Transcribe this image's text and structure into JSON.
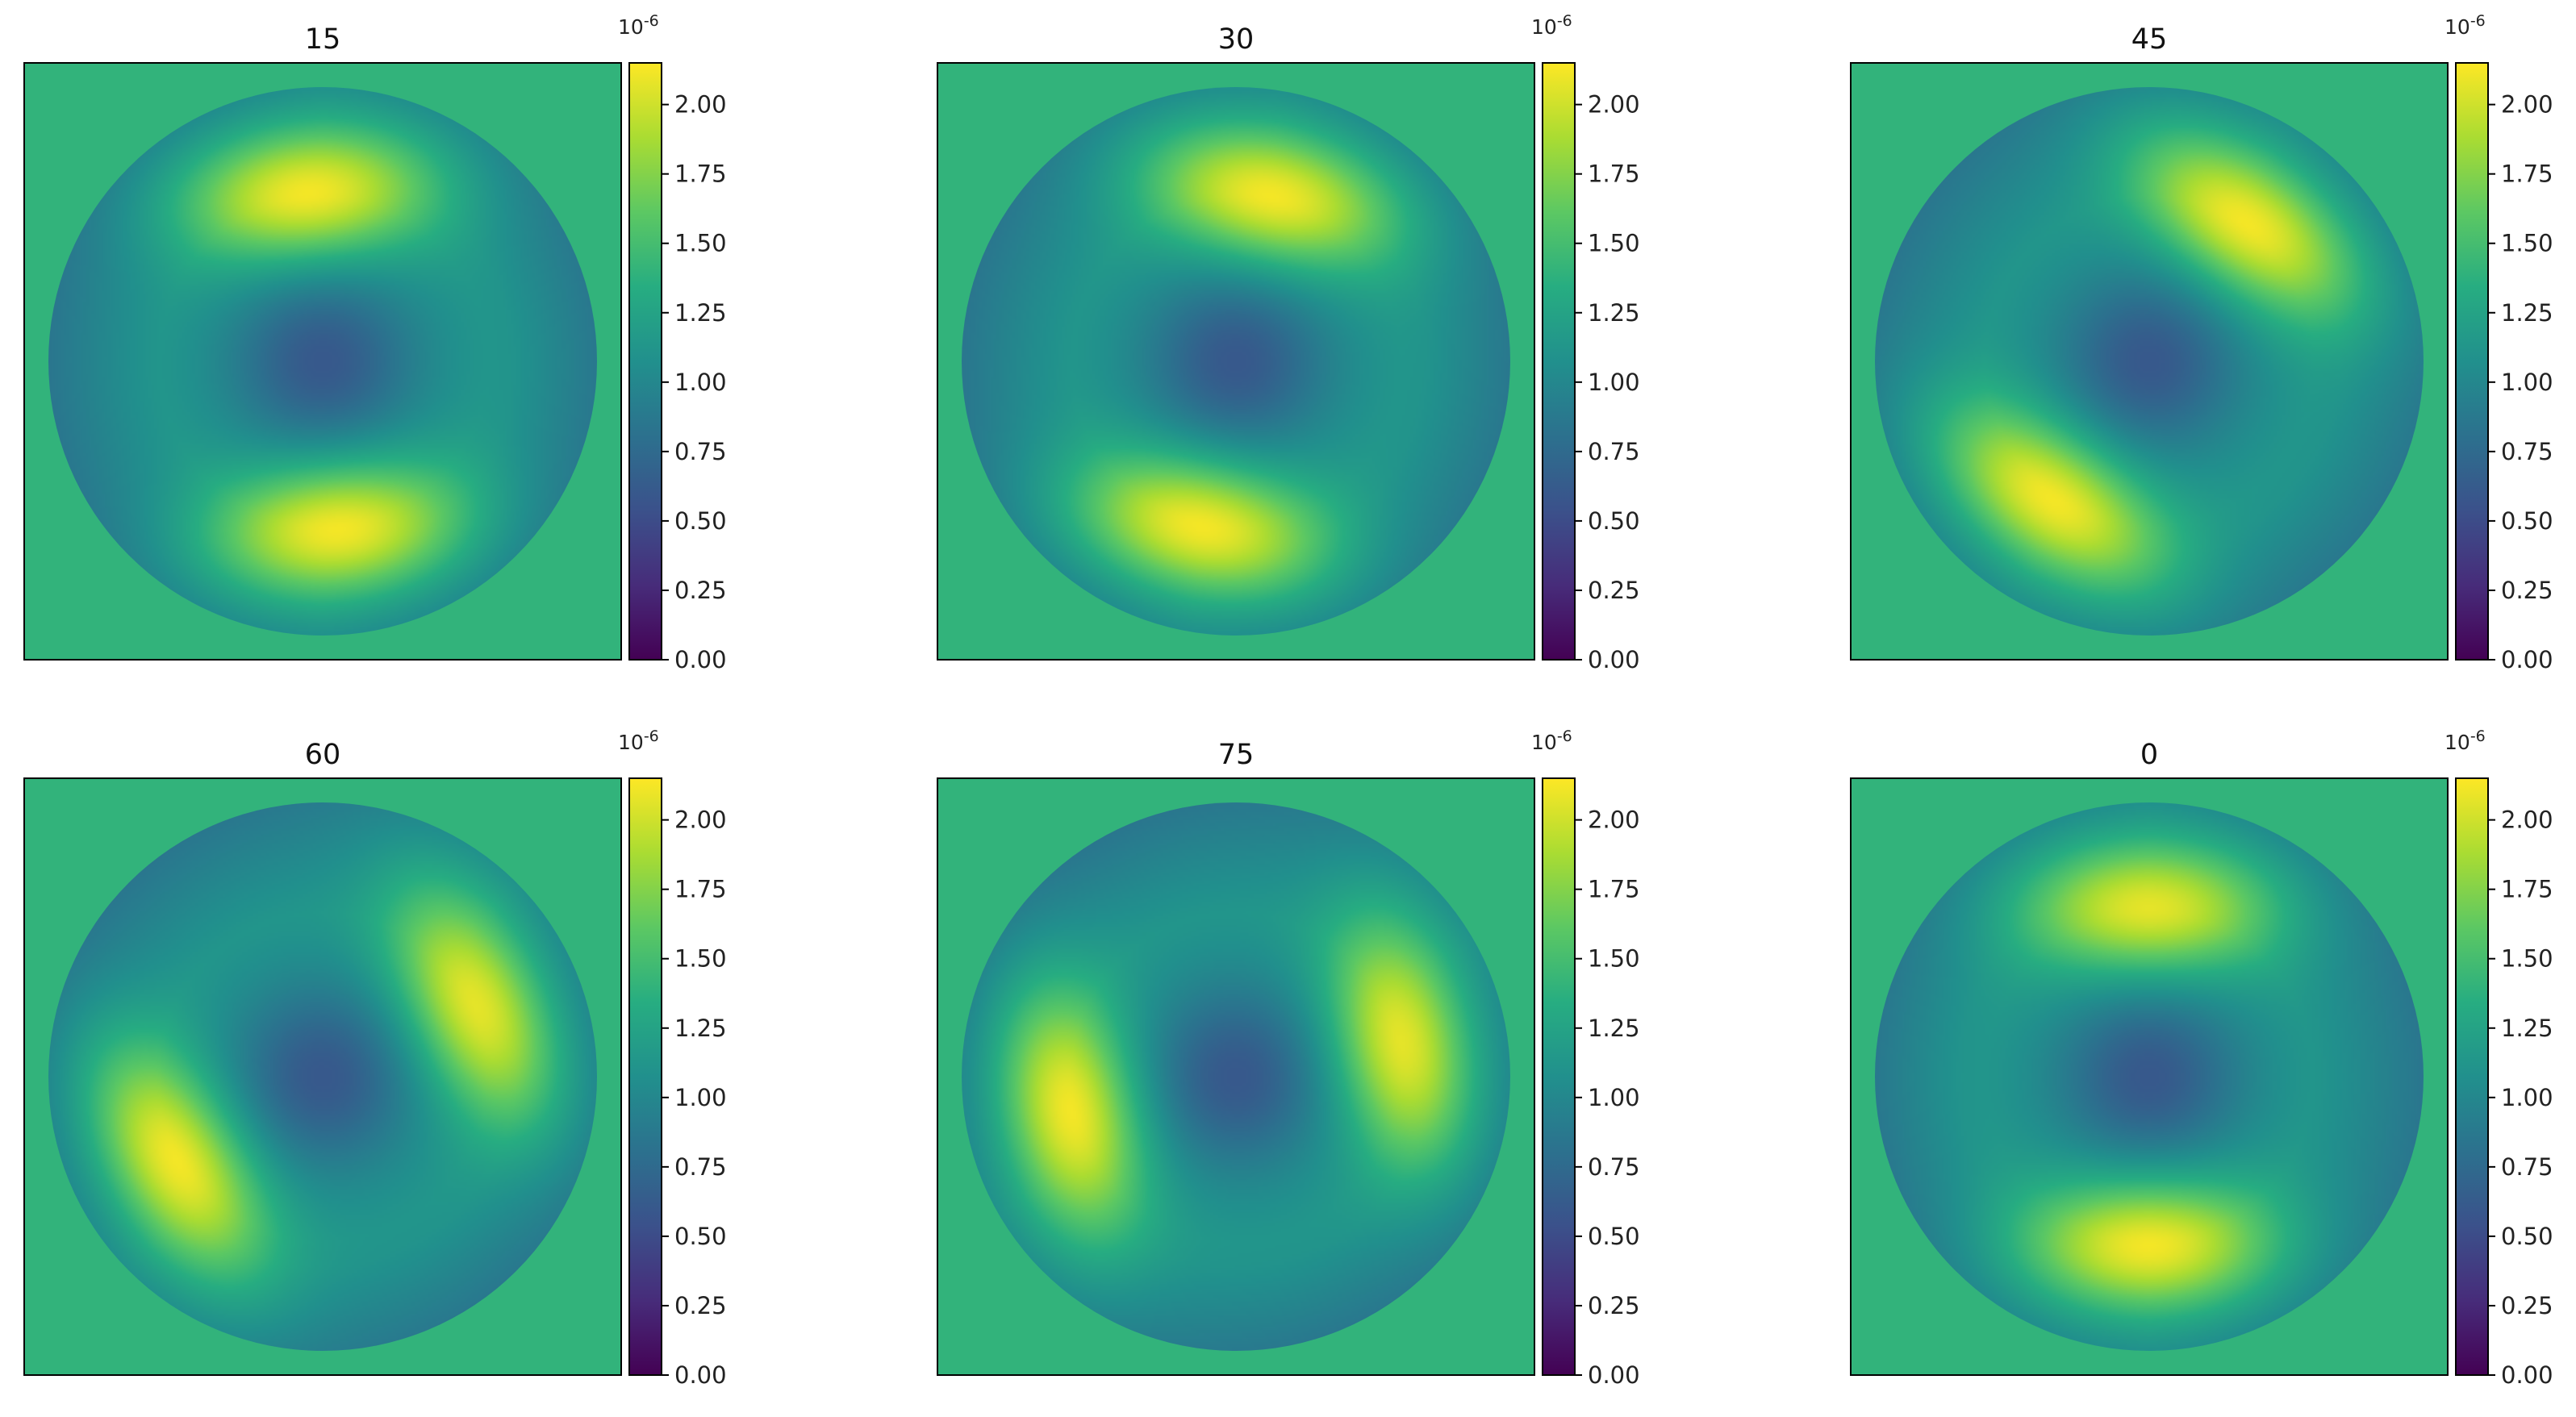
{
  "chart_data": [
    {
      "type": "heatmap",
      "title": "15",
      "colormap": "viridis",
      "mask": "circle",
      "outside_value": 1.4,
      "colorbar": {
        "ticks": [
          "0.00",
          "0.25",
          "0.50",
          "0.75",
          "1.00",
          "1.25",
          "1.50",
          "1.75",
          "2.00"
        ],
        "scale_label": "10-6",
        "min": 0,
        "max": 2.15
      },
      "field": {
        "base": 1.15,
        "center_dip": 0.55,
        "lobes": [
          {
            "angle_deg": 95,
            "amplitude": 1.0
          },
          {
            "angle_deg": 275,
            "amplitude": 1.0
          }
        ],
        "edge_low_deg": 180
      }
    },
    {
      "type": "heatmap",
      "title": "30",
      "colormap": "viridis",
      "mask": "circle",
      "outside_value": 1.4,
      "colorbar": {
        "ticks": [
          "0.00",
          "0.25",
          "0.50",
          "0.75",
          "1.00",
          "1.25",
          "1.50",
          "1.75",
          "2.00"
        ],
        "scale_label": "10-6",
        "min": 0,
        "max": 2.15
      },
      "field": {
        "base": 1.15,
        "center_dip": 0.55,
        "lobes": [
          {
            "angle_deg": 78,
            "amplitude": 1.0
          },
          {
            "angle_deg": 258,
            "amplitude": 1.0
          }
        ],
        "edge_low_deg": 170
      }
    },
    {
      "type": "heatmap",
      "title": "45",
      "colormap": "viridis",
      "mask": "circle",
      "outside_value": 1.4,
      "colorbar": {
        "ticks": [
          "0.00",
          "0.25",
          "0.50",
          "0.75",
          "1.00",
          "1.25",
          "1.50",
          "1.75",
          "2.00"
        ],
        "scale_label": "10-6",
        "min": 0,
        "max": 2.15
      },
      "field": {
        "base": 1.15,
        "center_dip": 0.55,
        "lobes": [
          {
            "angle_deg": 55,
            "amplitude": 1.0
          },
          {
            "angle_deg": 235,
            "amplitude": 1.0
          }
        ],
        "edge_low_deg": 150
      }
    },
    {
      "type": "heatmap",
      "title": "60",
      "colormap": "viridis",
      "mask": "circle",
      "outside_value": 1.4,
      "colorbar": {
        "ticks": [
          "0.00",
          "0.25",
          "0.50",
          "0.75",
          "1.00",
          "1.25",
          "1.50",
          "1.75",
          "2.00"
        ],
        "scale_label": "10-6",
        "min": 0,
        "max": 2.15
      },
      "field": {
        "base": 1.15,
        "center_dip": 0.55,
        "lobes": [
          {
            "angle_deg": 25,
            "amplitude": 0.95
          },
          {
            "angle_deg": 210,
            "amplitude": 1.0
          }
        ],
        "edge_low_deg": 135
      }
    },
    {
      "type": "heatmap",
      "title": "75",
      "colormap": "viridis",
      "mask": "circle",
      "outside_value": 1.4,
      "colorbar": {
        "ticks": [
          "0.00",
          "0.25",
          "0.50",
          "0.75",
          "1.00",
          "1.25",
          "1.50",
          "1.75",
          "2.00"
        ],
        "scale_label": "10-6",
        "min": 0,
        "max": 2.15
      },
      "field": {
        "base": 1.15,
        "center_dip": 0.55,
        "lobes": [
          {
            "angle_deg": 12,
            "amplitude": 0.95
          },
          {
            "angle_deg": 192,
            "amplitude": 1.0
          }
        ],
        "edge_low_deg": 120
      }
    },
    {
      "type": "heatmap",
      "title": "0",
      "colormap": "viridis",
      "mask": "circle",
      "outside_value": 1.4,
      "colorbar": {
        "ticks": [
          "0.00",
          "0.25",
          "0.50",
          "0.75",
          "1.00",
          "1.25",
          "1.50",
          "1.75",
          "2.00"
        ],
        "scale_label": "10-6",
        "min": 0,
        "max": 2.15
      },
      "field": {
        "base": 1.15,
        "center_dip": 0.55,
        "lobes": [
          {
            "angle_deg": 90,
            "amplitude": 0.95
          },
          {
            "angle_deg": 270,
            "amplitude": 1.0
          }
        ],
        "edge_low_deg": 0
      }
    }
  ]
}
